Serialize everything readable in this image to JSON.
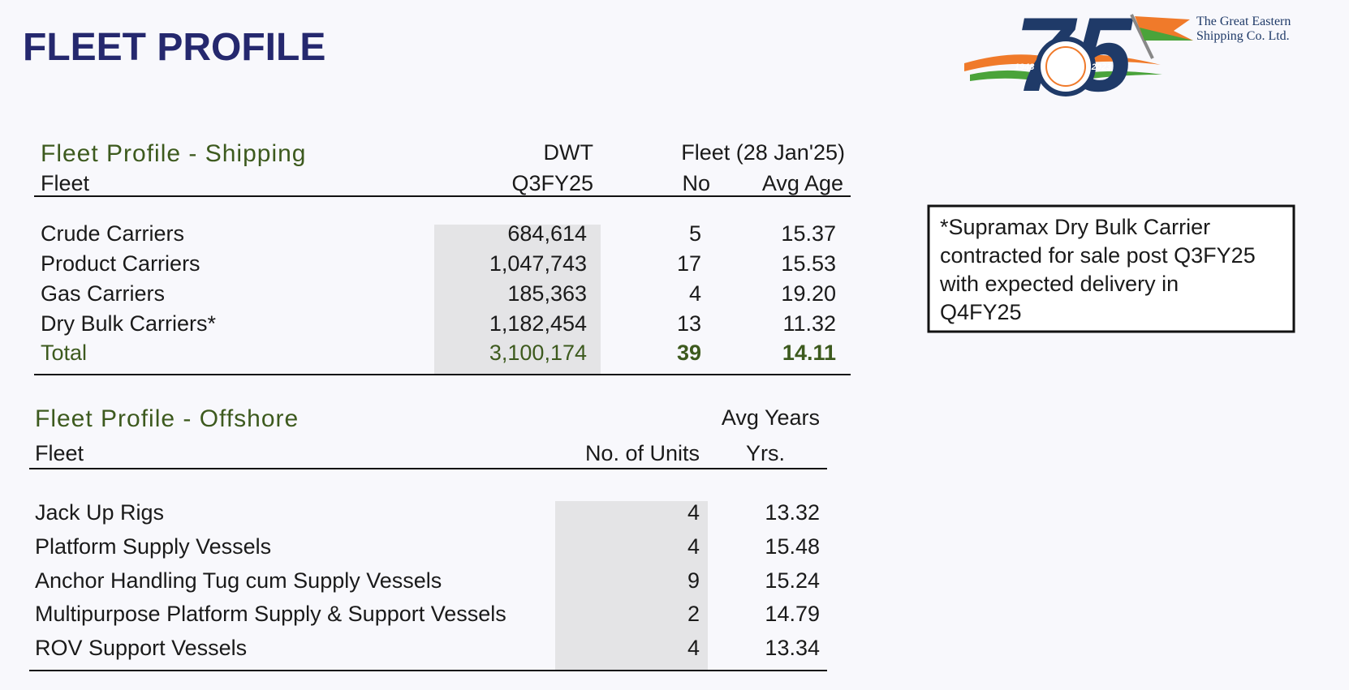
{
  "header": {
    "title": "FLEET PROFILE"
  },
  "logo": {
    "anniversary": "75",
    "start_year": "1948",
    "end_year": "2023",
    "company": [
      "The Great Eastern",
      "Shipping Co. Ltd."
    ]
  },
  "shipping": {
    "title": "Fleet Profile - Shipping",
    "headers": {
      "fleet": "Fleet",
      "dwt": "DWT",
      "period": "Q3FY25",
      "group": "Fleet (28 Jan'25)",
      "no": "No",
      "age": "Avg Age"
    },
    "rows": [
      [
        "Crude Carriers",
        "684,614",
        "5",
        "15.37"
      ],
      [
        "Product Carriers",
        "1,047,743",
        "17",
        "15.53"
      ],
      [
        "Gas Carriers",
        "185,363",
        "4",
        "19.20"
      ],
      [
        "Dry Bulk Carriers*",
        "1,182,454",
        "13",
        "11.32"
      ],
      [
        "Total",
        "3,100,174",
        "39",
        "14.11"
      ]
    ]
  },
  "offshore": {
    "title": "Fleet Profile - Offshore",
    "headers": {
      "fleet": "Fleet",
      "units": "No. of Units",
      "avg": "Avg Years",
      "yrs": "Yrs."
    },
    "rows": [
      [
        "Jack Up Rigs",
        "4",
        "13.32"
      ],
      [
        "Platform Supply Vessels",
        "4",
        "15.48"
      ],
      [
        "Anchor Handling Tug cum Supply Vessels",
        "9",
        "15.24"
      ],
      [
        "Multipurpose Platform Supply & Support Vessels",
        "2",
        "14.79"
      ],
      [
        "ROV Support Vessels",
        "4",
        "13.34"
      ]
    ]
  },
  "note": {
    "lines": [
      "*Supramax Dry Bulk Carrier",
      "contracted for sale post Q3FY25",
      "with expected delivery in",
      "Q4FY25"
    ]
  }
}
